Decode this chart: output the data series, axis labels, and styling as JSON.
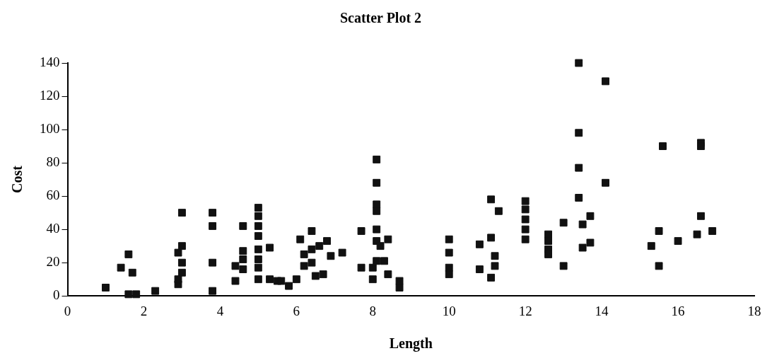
{
  "chart_data": {
    "type": "scatter",
    "title": "Scatter Plot 2",
    "xlabel": "Length",
    "ylabel": "Cost",
    "xlim": [
      0,
      18
    ],
    "xticks": [
      0,
      2,
      4,
      6,
      8,
      10,
      12,
      14,
      16,
      18
    ],
    "ylim": [
      0,
      140
    ],
    "yticks": [
      0,
      20,
      40,
      60,
      80,
      100,
      120,
      140
    ],
    "grid": false,
    "legend": false,
    "marker": "square",
    "series": [
      {
        "color": "#111111",
        "x": [
          1.0,
          1.4,
          1.6,
          1.7,
          1.6,
          1.8,
          2.3,
          2.9,
          2.9,
          2.9,
          3.0,
          3.0,
          3.0,
          3.0,
          3.8,
          3.8,
          3.8,
          3.8,
          4.4,
          4.4,
          4.6,
          4.6,
          4.6,
          4.6,
          5.0,
          5.0,
          5.0,
          5.0,
          5.0,
          5.0,
          5.0,
          5.0,
          5.3,
          5.3,
          5.5,
          5.6,
          5.8,
          6.0,
          6.1,
          6.2,
          6.2,
          6.4,
          6.4,
          6.4,
          6.5,
          6.6,
          6.7,
          6.8,
          6.9,
          7.2,
          7.7,
          7.7,
          8.0,
          8.0,
          8.1,
          8.1,
          8.1,
          8.1,
          8.1,
          8.1,
          8.2,
          8.1,
          8.3,
          8.4,
          8.4,
          8.7,
          8.7,
          10,
          10,
          10,
          10,
          10.8,
          10.8,
          11.1,
          11.1,
          11.1,
          11.2,
          11.2,
          11.3,
          12,
          12,
          12,
          12,
          12,
          12.6,
          12.6,
          12.6,
          12.6,
          13.0,
          13.0,
          13.4,
          13.4,
          13.4,
          13.4,
          13.5,
          13.5,
          13.7,
          13.7,
          14.1,
          14.1,
          15.3,
          15.5,
          15.5,
          15.6,
          16.0,
          16.5,
          16.6,
          16.6,
          16.6,
          16.9
        ],
        "values": [
          5,
          17,
          25,
          14,
          1,
          1,
          3,
          7,
          10,
          26,
          30,
          20,
          14,
          50,
          50,
          42,
          20,
          3,
          9,
          18,
          27,
          22,
          16,
          42,
          53,
          48,
          42,
          36,
          28,
          22,
          17,
          10,
          29,
          10,
          9,
          9,
          6,
          10,
          34,
          18,
          25,
          39,
          28,
          20,
          12,
          30,
          13,
          33,
          24,
          26,
          17,
          39,
          10,
          17,
          82,
          68,
          55,
          51,
          40,
          33,
          30,
          21,
          21,
          13,
          34,
          5,
          9,
          34,
          26,
          17,
          13,
          31,
          16,
          58,
          35,
          11,
          24,
          18,
          51,
          57,
          52,
          46,
          40,
          34,
          37,
          33,
          28,
          25,
          44,
          18,
          140,
          98,
          77,
          59,
          43,
          29,
          48,
          32,
          129,
          68,
          30,
          39,
          18,
          90,
          33,
          37,
          48,
          92,
          90,
          39
        ]
      }
    ]
  }
}
